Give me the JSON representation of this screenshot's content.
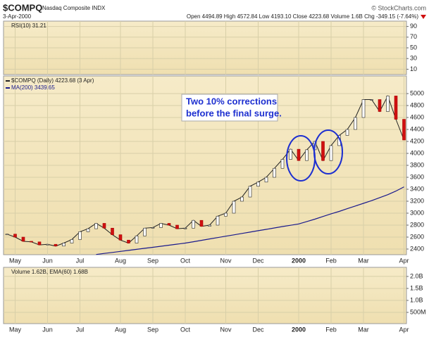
{
  "header": {
    "symbol": "$COMPQ",
    "name": "Nasdaq Composite INDX",
    "source": "© StockCharts.com",
    "date": "3-Apr-2000",
    "quote": "Open 4494.89 High 4572.84 Low 4193.10 Close 4223.68 Volume 1.6B Chg -349.15 (-7.64%)"
  },
  "chart_data": [
    {
      "type": "line",
      "legend": "RSI(10) 31.21",
      "ylim": [
        0,
        100
      ],
      "yticks": [
        10,
        30,
        50,
        70,
        90
      ],
      "grid": true
    },
    {
      "type": "line",
      "categories": [
        null,
        "May",
        null,
        null,
        null,
        "Jun",
        null,
        null,
        null,
        "Jul",
        null,
        null,
        null,
        null,
        "Aug",
        null,
        null,
        null,
        "Sep",
        null,
        null,
        null,
        "Oct",
        null,
        null,
        null,
        null,
        "Nov",
        null,
        null,
        null,
        "Dec",
        null,
        null,
        null,
        null,
        "2000",
        null,
        null,
        null,
        "Feb",
        null,
        null,
        null,
        "Mar",
        null,
        null,
        null,
        null,
        "Apr"
      ],
      "series": [
        {
          "name": "$COMPQ (Daily) 4223.68 (3 Apr)",
          "color": "#222222",
          "values": [
            2650,
            2600,
            2530,
            2520,
            2470,
            2480,
            2450,
            2500,
            2560,
            2690,
            2740,
            2830,
            2750,
            2640,
            2550,
            2500,
            2620,
            2750,
            2760,
            2830,
            2800,
            2740,
            2750,
            2880,
            2780,
            2800,
            2950,
            3000,
            3200,
            3270,
            3450,
            3520,
            3600,
            3750,
            3900,
            4069,
            3880,
            4060,
            4200,
            3880,
            4130,
            4300,
            4400,
            4600,
            4900,
            4900,
            4700,
            4960,
            4570,
            4224
          ]
        },
        {
          "name": "MA(200) 3439.65",
          "color": "#1a1a8c",
          "values": [
            null,
            null,
            null,
            null,
            null,
            null,
            null,
            null,
            null,
            null,
            null,
            2310,
            2327,
            2344,
            2361,
            2378,
            2395,
            2413,
            2430,
            2447,
            2465,
            2482,
            2500,
            2523,
            2546,
            2569,
            2592,
            2615,
            2638,
            2661,
            2684,
            2707,
            2730,
            2753,
            2776,
            2798,
            2820,
            2860,
            2900,
            2945,
            2990,
            3030,
            3075,
            3120,
            3165,
            3210,
            3260,
            3310,
            3370,
            3440
          ]
        }
      ],
      "ylim": [
        2306,
        5294
      ],
      "yticks": [
        2400,
        2600,
        2800,
        3000,
        3200,
        3400,
        3600,
        3800,
        4000,
        4200,
        4400,
        4600,
        4800,
        5000
      ],
      "grid": true,
      "annotation": [
        "Two 10% corrections",
        "before the final surge."
      ]
    },
    {
      "type": "bar",
      "legend": "Volume 1.62B, EMA(60) 1.68B",
      "ylim": [
        30000000,
        2380000000
      ],
      "yticks": [
        {
          "value": 500000000,
          "label": "500M"
        },
        {
          "value": 1000000000,
          "label": "1.0B"
        },
        {
          "value": 1500000000,
          "label": "1.5B"
        },
        {
          "value": 2000000000,
          "label": "2.0B"
        }
      ],
      "grid": true
    }
  ]
}
